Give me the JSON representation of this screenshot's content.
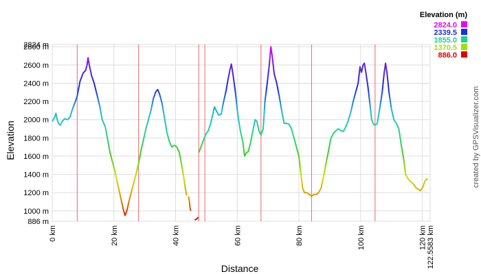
{
  "chart_data": {
    "type": "line",
    "xlabel": "Distance",
    "ylabel": "Elevation",
    "xlim": [
      0,
      122.5583
    ],
    "ylim": [
      886,
      2824
    ],
    "x_ticks": [
      {
        "value": 0,
        "label": "0 km"
      },
      {
        "value": 20,
        "label": "20 km"
      },
      {
        "value": 40,
        "label": "40 km"
      },
      {
        "value": 60,
        "label": "60 km"
      },
      {
        "value": 80,
        "label": "80 km"
      },
      {
        "value": 100,
        "label": "100 km"
      },
      {
        "value": 120,
        "label": "120 km"
      },
      {
        "value": 122.5583,
        "label": "122.5583 km"
      }
    ],
    "y_ticks": [
      {
        "value": 886,
        "label": "886 m"
      },
      {
        "value": 1000,
        "label": "1000 m"
      },
      {
        "value": 1200,
        "label": "1200 m"
      },
      {
        "value": 1400,
        "label": "1400 m"
      },
      {
        "value": 1600,
        "label": "1600 m"
      },
      {
        "value": 1800,
        "label": "1800 m"
      },
      {
        "value": 2000,
        "label": "2000 m"
      },
      {
        "value": 2200,
        "label": "2200 m"
      },
      {
        "value": 2400,
        "label": "2400 m"
      },
      {
        "value": 2600,
        "label": "2600 m"
      },
      {
        "value": 2800,
        "label": "2800 m"
      },
      {
        "value": 2824,
        "label": "2824 m"
      }
    ],
    "vertical_markers_km": [
      8.1,
      28.0,
      47.5,
      49.5,
      67.7,
      84.1,
      104.7
    ],
    "grid": true,
    "legend": {
      "title": "Elevation (m)",
      "placement": "top-right",
      "entries": [
        {
          "label": "2824.0",
          "color": "#ee00ee"
        },
        {
          "label": "2339.5",
          "color": "#1a2ee0"
        },
        {
          "label": "1855.0",
          "color": "#1ad68c"
        },
        {
          "label": "1370.5",
          "color": "#aadd00"
        },
        {
          "label": "886.0",
          "color": "#dd0000"
        }
      ]
    },
    "gradient_stops": [
      {
        "value": 886,
        "color": "#dd0000"
      },
      {
        "value": 1130,
        "color": "#e08a00"
      },
      {
        "value": 1370.5,
        "color": "#cce000"
      },
      {
        "value": 1612,
        "color": "#44cc22"
      },
      {
        "value": 1855,
        "color": "#22d690"
      },
      {
        "value": 2100,
        "color": "#22b4dd"
      },
      {
        "value": 2339.5,
        "color": "#1a2ee0"
      },
      {
        "value": 2600,
        "color": "#6620dd"
      },
      {
        "value": 2824,
        "color": "#ee00ee"
      }
    ],
    "segments": [
      {
        "points": [
          [
            0,
            1980
          ],
          [
            0.8,
            2030
          ],
          [
            1.2,
            2070
          ],
          [
            1.6,
            2000
          ],
          [
            2,
            1960
          ],
          [
            2.6,
            1940
          ],
          [
            3.2,
            1980
          ],
          [
            4,
            2010
          ],
          [
            5,
            2000
          ],
          [
            5.8,
            2030
          ],
          [
            6.5,
            2110
          ],
          [
            7.5,
            2200
          ],
          [
            8.1,
            2260
          ],
          [
            9,
            2420
          ],
          [
            10,
            2510
          ],
          [
            10.8,
            2540
          ],
          [
            11.3,
            2600
          ],
          [
            11.6,
            2680
          ],
          [
            12,
            2600
          ],
          [
            12.8,
            2480
          ],
          [
            13.6,
            2400
          ],
          [
            14.4,
            2290
          ],
          [
            15.4,
            2150
          ],
          [
            16.2,
            2000
          ],
          [
            17.2,
            1920
          ],
          [
            18,
            1780
          ],
          [
            18.6,
            1660
          ],
          [
            19.5,
            1540
          ],
          [
            20.3,
            1440
          ],
          [
            21,
            1330
          ],
          [
            21.8,
            1210
          ],
          [
            22.5,
            1100
          ],
          [
            23.1,
            1010
          ],
          [
            23.6,
            950
          ],
          [
            24.2,
            1000
          ],
          [
            25,
            1120
          ],
          [
            26,
            1250
          ],
          [
            27,
            1380
          ],
          [
            28,
            1520
          ],
          [
            28.8,
            1660
          ],
          [
            29.6,
            1780
          ],
          [
            30.4,
            1900
          ],
          [
            31.2,
            2000
          ],
          [
            32,
            2100
          ],
          [
            32.8,
            2230
          ],
          [
            33.5,
            2300
          ],
          [
            34.2,
            2330
          ],
          [
            34.8,
            2280
          ],
          [
            35.6,
            2180
          ],
          [
            36.4,
            2020
          ],
          [
            37.2,
            1860
          ],
          [
            38,
            1760
          ],
          [
            38.8,
            1700
          ],
          [
            39.6,
            1720
          ],
          [
            40.4,
            1700
          ],
          [
            41.2,
            1640
          ],
          [
            42,
            1500
          ],
          [
            42.6,
            1380
          ],
          [
            43.2,
            1240
          ],
          [
            43.6,
            1170
          ]
        ]
      },
      {
        "points": [
          [
            44.2,
            1160
          ],
          [
            44.5,
            1100
          ],
          [
            44.7,
            1030
          ],
          [
            44.9,
            1000
          ]
        ]
      },
      {
        "points": [
          [
            46.2,
            900
          ],
          [
            46.8,
            910
          ],
          [
            47.4,
            930
          ]
        ]
      },
      {
        "points": [
          [
            47.6,
            1640
          ],
          [
            48.2,
            1700
          ],
          [
            49,
            1770
          ],
          [
            49.8,
            1840
          ],
          [
            50.6,
            1880
          ],
          [
            51.4,
            1960
          ],
          [
            52,
            2050
          ],
          [
            52.6,
            2140
          ],
          [
            53.2,
            2100
          ],
          [
            54,
            2050
          ],
          [
            54.8,
            2060
          ],
          [
            55.6,
            2200
          ],
          [
            56.4,
            2320
          ],
          [
            57,
            2440
          ],
          [
            57.6,
            2540
          ],
          [
            58.1,
            2610
          ],
          [
            58.6,
            2500
          ],
          [
            59.4,
            2300
          ],
          [
            60.2,
            2050
          ],
          [
            61,
            1880
          ],
          [
            61.8,
            1760
          ],
          [
            62.4,
            1600
          ],
          [
            63,
            1640
          ],
          [
            63.6,
            1650
          ],
          [
            64.4,
            1760
          ],
          [
            65.2,
            1900
          ],
          [
            65.8,
            2000
          ],
          [
            66.4,
            1980
          ],
          [
            67,
            1880
          ],
          [
            67.7,
            1830
          ],
          [
            68.4,
            1900
          ],
          [
            69,
            2200
          ],
          [
            69.8,
            2420
          ],
          [
            70.4,
            2600
          ],
          [
            70.9,
            2800
          ],
          [
            71.4,
            2680
          ],
          [
            72,
            2500
          ],
          [
            72.8,
            2400
          ],
          [
            73.6,
            2260
          ],
          [
            74.4,
            2100
          ],
          [
            75.2,
            1960
          ],
          [
            76,
            1960
          ],
          [
            76.8,
            1950
          ],
          [
            77.6,
            1900
          ],
          [
            78.4,
            1800
          ],
          [
            79.2,
            1700
          ],
          [
            80,
            1600
          ],
          [
            80.6,
            1420
          ],
          [
            81.2,
            1250
          ],
          [
            81.8,
            1200
          ],
          [
            82.6,
            1200
          ],
          [
            83.4,
            1180
          ],
          [
            84.1,
            1160
          ],
          [
            84.8,
            1180
          ],
          [
            85.6,
            1180
          ],
          [
            86.4,
            1200
          ],
          [
            87.2,
            1250
          ],
          [
            88,
            1380
          ],
          [
            88.8,
            1520
          ],
          [
            89.6,
            1660
          ],
          [
            90.4,
            1800
          ],
          [
            91.2,
            1850
          ],
          [
            92,
            1880
          ],
          [
            92.8,
            1900
          ],
          [
            93.6,
            1880
          ],
          [
            94.4,
            1870
          ],
          [
            95.2,
            1920
          ],
          [
            96,
            1990
          ],
          [
            96.8,
            2080
          ],
          [
            97.6,
            2200
          ],
          [
            98.4,
            2300
          ],
          [
            99.2,
            2400
          ],
          [
            99.8,
            2580
          ],
          [
            100.3,
            2520
          ],
          [
            100.8,
            2600
          ],
          [
            101.2,
            2620
          ],
          [
            101.8,
            2500
          ],
          [
            102.4,
            2360
          ],
          [
            103,
            2180
          ],
          [
            103.6,
            2000
          ],
          [
            104.2,
            1950
          ],
          [
            104.7,
            1940
          ],
          [
            105.4,
            1960
          ],
          [
            106.2,
            2120
          ],
          [
            107,
            2300
          ],
          [
            107.6,
            2500
          ],
          [
            108.1,
            2620
          ],
          [
            108.6,
            2500
          ],
          [
            109.2,
            2300
          ],
          [
            110,
            2120
          ],
          [
            110.8,
            2000
          ],
          [
            111.6,
            1960
          ],
          [
            112.4,
            1900
          ],
          [
            113.2,
            1720
          ],
          [
            114,
            1560
          ],
          [
            114.6,
            1400
          ],
          [
            115.4,
            1350
          ],
          [
            116.2,
            1320
          ],
          [
            117,
            1300
          ],
          [
            117.8,
            1260
          ],
          [
            118.6,
            1240
          ],
          [
            119.4,
            1220
          ],
          [
            120.2,
            1260
          ],
          [
            120.8,
            1320
          ],
          [
            121.4,
            1350
          ],
          [
            121.8,
            1340
          ]
        ]
      }
    ]
  },
  "credit_text": "created by GPSVisualizer.com"
}
